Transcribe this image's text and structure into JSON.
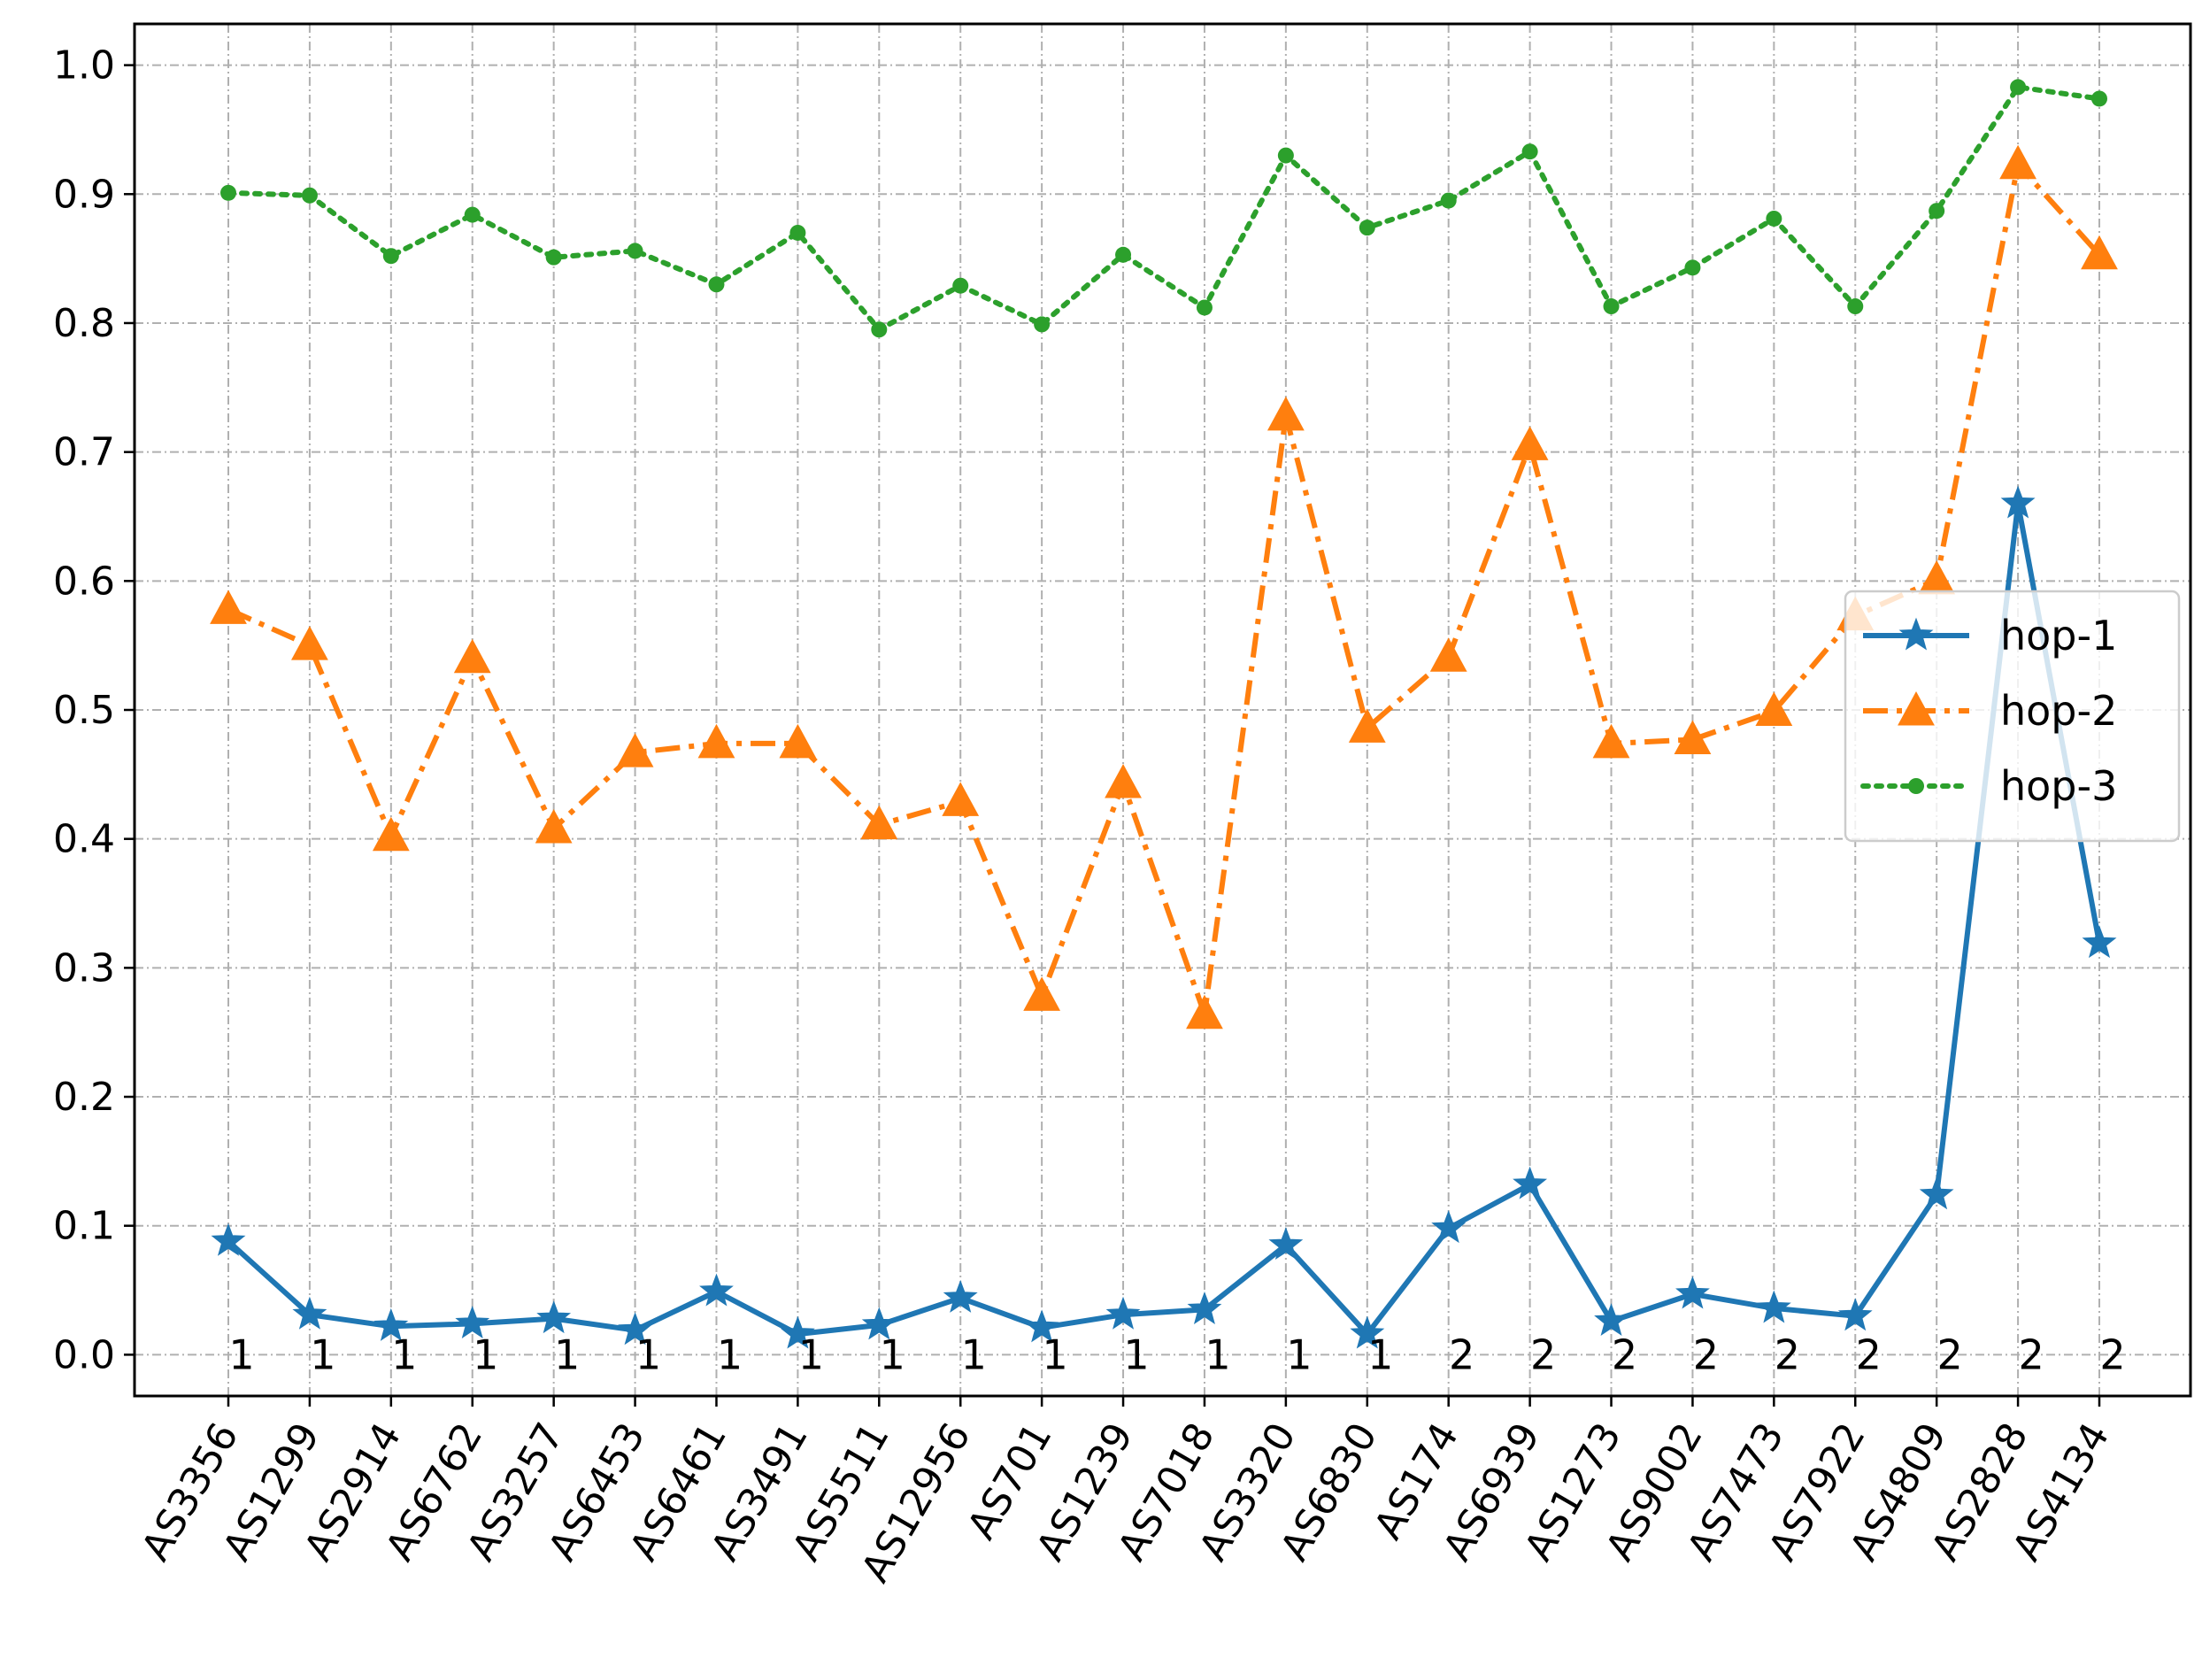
{
  "chart_data": {
    "type": "line",
    "title": "",
    "xlabel": "",
    "ylabel": "",
    "ylim": [
      -0.032,
      1.032
    ],
    "yticks": [
      "0.0",
      "0.1",
      "0.2",
      "0.3",
      "0.4",
      "0.5",
      "0.6",
      "0.7",
      "0.8",
      "0.9",
      "1.0"
    ],
    "grid": true,
    "legend_position": "center-right",
    "categories": [
      "AS3356",
      "AS1299",
      "AS2914",
      "AS6762",
      "AS3257",
      "AS6453",
      "AS6461",
      "AS3491",
      "AS5511",
      "AS12956",
      "AS701",
      "AS1239",
      "AS7018",
      "AS3320",
      "AS6830",
      "AS174",
      "AS6939",
      "AS1273",
      "AS9002",
      "AS7473",
      "AS7922",
      "AS4809",
      "AS2828",
      "AS4134"
    ],
    "annotations": [
      "1",
      "1",
      "1",
      "1",
      "1",
      "1",
      "1",
      "1",
      "1",
      "1",
      "1",
      "1",
      "1",
      "1",
      "1",
      "2",
      "2",
      "2",
      "2",
      "2",
      "2",
      "2",
      "2",
      "2"
    ],
    "series": [
      {
        "name": "hop-1",
        "color": "#1f77b4",
        "marker": "star",
        "linestyle": "solid",
        "values": [
          0.088,
          0.031,
          0.022,
          0.024,
          0.028,
          0.019,
          0.049,
          0.016,
          0.023,
          0.044,
          0.021,
          0.031,
          0.035,
          0.085,
          0.016,
          0.098,
          0.132,
          0.026,
          0.047,
          0.036,
          0.03,
          0.124,
          0.66,
          0.319
        ]
      },
      {
        "name": "hop-2",
        "color": "#ff7f0e",
        "marker": "triangle",
        "linestyle": "dashdot",
        "values": [
          0.578,
          0.55,
          0.402,
          0.54,
          0.408,
          0.467,
          0.474,
          0.474,
          0.411,
          0.429,
          0.278,
          0.443,
          0.264,
          0.728,
          0.486,
          0.541,
          0.705,
          0.474,
          0.477,
          0.499,
          0.573,
          0.601,
          0.923,
          0.853
        ]
      },
      {
        "name": "hop-3",
        "color": "#2ca02c",
        "marker": "circle",
        "linestyle": "dotted",
        "values": [
          0.901,
          0.899,
          0.852,
          0.884,
          0.851,
          0.856,
          0.83,
          0.87,
          0.795,
          0.829,
          0.799,
          0.853,
          0.812,
          0.93,
          0.874,
          0.895,
          0.933,
          0.813,
          0.843,
          0.881,
          0.813,
          0.887,
          0.983,
          0.974
        ]
      }
    ]
  }
}
